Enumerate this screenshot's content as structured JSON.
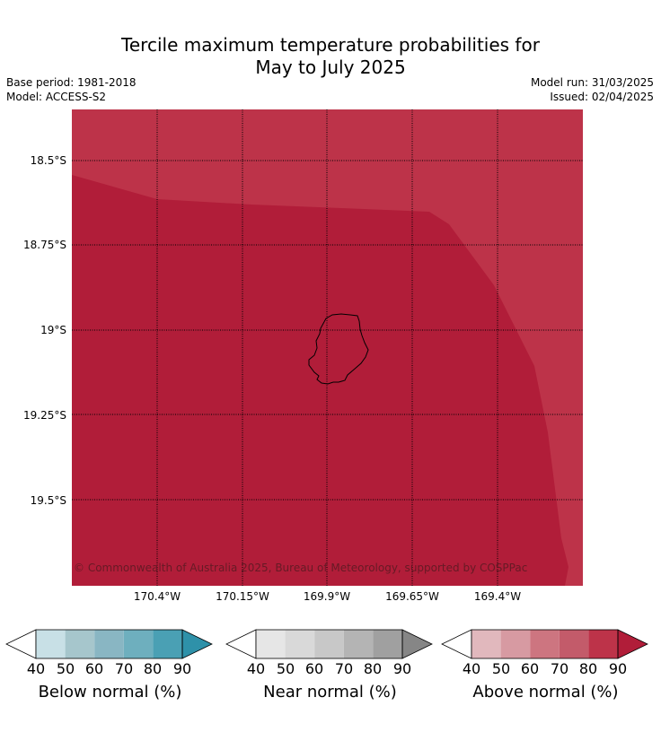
{
  "title_line1": "Tercile maximum temperature probabilities for",
  "title_line2": "May to July 2025",
  "base_period": "Base period: 1981-2018",
  "model": "Model: ACCESS-S2",
  "model_run": "Model run: 31/03/2025",
  "issued": "Issued: 02/04/2025",
  "lat_labels": [
    "18.5°S",
    "18.75°S",
    "19°S",
    "19.25°S",
    "19.5°S"
  ],
  "lon_labels": [
    "170.4°W",
    "170.15°W",
    "169.9°W",
    "169.65°W",
    "169.4°W"
  ],
  "copyright": "© Commonwealth of Australia 2025, Bureau of Meteorology, supported by COSPPac",
  "map_colors": {
    "above_80_90": "#bd3349",
    "above_90": "#b11d39"
  },
  "legends": [
    {
      "title": "Below normal (%)",
      "ticks": [
        "40",
        "50",
        "60",
        "70",
        "80",
        "90"
      ],
      "colors": [
        "#c8e0e6",
        "#a6c6cc",
        "#89b6c3",
        "#6eafbe",
        "#4aa0b4",
        "#2e91a9"
      ]
    },
    {
      "title": "Near normal (%)",
      "ticks": [
        "40",
        "50",
        "60",
        "70",
        "80",
        "90"
      ],
      "colors": [
        "#e6e6e6",
        "#d9d9d9",
        "#c8c8c8",
        "#b4b4b4",
        "#a0a0a0",
        "#868686"
      ]
    },
    {
      "title": "Above normal (%)",
      "ticks": [
        "40",
        "50",
        "60",
        "70",
        "80",
        "90"
      ],
      "colors": [
        "#e1b8bd",
        "#d79aa2",
        "#cd7580",
        "#c35b6a",
        "#bd3349",
        "#b11d39"
      ]
    }
  ]
}
